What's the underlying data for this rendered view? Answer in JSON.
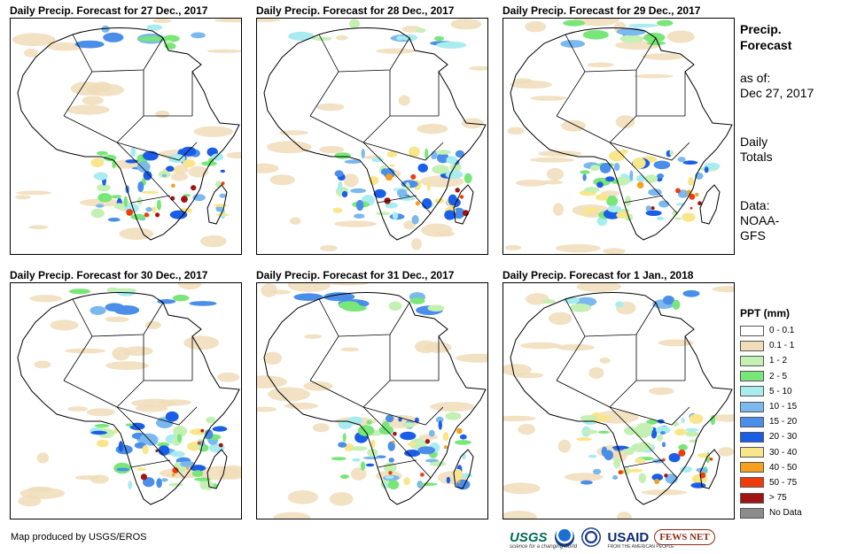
{
  "panels": [
    {
      "title": "Daily Precip. Forecast for 27 Dec., 2017"
    },
    {
      "title": "Daily Precip. Forecast for 28 Dec., 2017"
    },
    {
      "title": "Daily Precip. Forecast for 29 Dec., 2017"
    },
    {
      "title": "Daily Precip. Forecast for 30 Dec., 2017"
    },
    {
      "title": "Daily Precip. Forecast for 31 Dec., 2017"
    },
    {
      "title": "Daily Precip. Forecast for 1 Jan., 2018"
    }
  ],
  "sidebar": {
    "title_line1": "Precip.",
    "title_line2": "Forecast",
    "asof_line1": "as of:",
    "asof_line2": "Dec 27, 2017",
    "totals_line1": "Daily",
    "totals_line2": "Totals",
    "data_line1": "Data:",
    "data_line2": "NOAA-",
    "data_line3": "GFS"
  },
  "legend": {
    "title": "PPT (mm)",
    "items": [
      {
        "label": "0 - 0.1",
        "color": "#ffffff"
      },
      {
        "label": "0.1 - 1",
        "color": "#f0dcb9"
      },
      {
        "label": "1 - 2",
        "color": "#c4f0b4"
      },
      {
        "label": "2 - 5",
        "color": "#78e678"
      },
      {
        "label": "5 - 10",
        "color": "#a8ecf0"
      },
      {
        "label": "10 - 15",
        "color": "#7ab8ee"
      },
      {
        "label": "15 - 20",
        "color": "#4a8eea"
      },
      {
        "label": "20 - 30",
        "color": "#1a5ee8"
      },
      {
        "label": "30 - 40",
        "color": "#fae68a"
      },
      {
        "label": "40 - 50",
        "color": "#f5a01e"
      },
      {
        "label": "50 - 75",
        "color": "#f03c0c"
      },
      {
        "label": "> 75",
        "color": "#a01414"
      },
      {
        "label": "No Data",
        "color": "#8c8c8c"
      }
    ]
  },
  "footer": {
    "credit": "Map produced by USGS/EROS",
    "logo_usgs": "USGS",
    "logo_usgs_tagline": "science for a changing world",
    "logo_usaid": "USAID",
    "logo_usaid_tagline": "FROM THE AMERICAN PEOPLE",
    "logo_fews": "FEWS NET"
  }
}
